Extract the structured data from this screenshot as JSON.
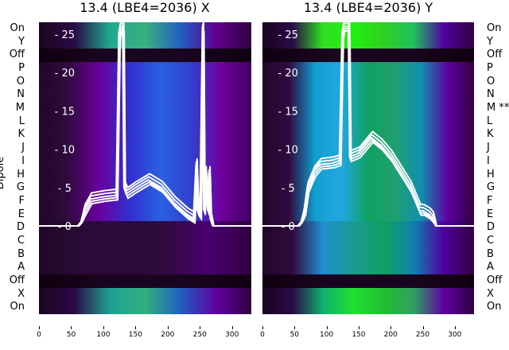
{
  "chart_data": [
    {
      "type": "heatmap",
      "title": "13.4 (LBE4=2036) X",
      "ylabel": "Dipole",
      "xlim": [
        0,
        330
      ],
      "ylim_line": [
        -1.5,
        26.5
      ],
      "xticks": [
        0,
        50,
        100,
        150,
        200,
        250,
        300
      ],
      "yticks": [
        0,
        5,
        10,
        15,
        20,
        25
      ],
      "row_labels": [
        "On",
        "Y",
        "Off",
        "P",
        "O",
        "N",
        "M",
        "L",
        "K",
        "J",
        "I",
        "H",
        "G",
        "F",
        "E",
        "D",
        "C",
        "B",
        "A",
        "Off",
        "X",
        "On"
      ],
      "band_colors": {
        "top": [
          "#1a0520",
          "#2a0a45",
          "#20a890",
          "#3ab080",
          "#2060c0",
          "#600090",
          "#300040"
        ],
        "off": [
          "#100010",
          "#1a0520",
          "#1a0520",
          "#100010"
        ],
        "main": [
          "#200828",
          "#300a40",
          "#6a00a0",
          "#3030d0",
          "#2a60e0",
          "#3040d0",
          "#7000a0",
          "#400060"
        ],
        "lower": [
          "#200828",
          "#2a0a38",
          "#2a0a38",
          "#300a40",
          "#4a0070",
          "#300040"
        ],
        "bottom": [
          "#1a0520",
          "#2a0a45",
          "#20a090",
          "#30b080",
          "#2060c0",
          "#6000a0",
          "#300040"
        ]
      },
      "line": {
        "x": [
          0,
          60,
          65,
          70,
          80,
          100,
          120,
          124,
          126,
          130,
          132,
          136,
          150,
          170,
          190,
          210,
          230,
          240,
          244,
          246,
          250,
          254,
          256,
          258,
          262,
          264,
          266,
          270,
          280,
          330
        ],
        "y": [
          0,
          0,
          0.5,
          2,
          3.5,
          3.8,
          4,
          25,
          26,
          26,
          5,
          4.2,
          5,
          6,
          5,
          3,
          1.5,
          1,
          8,
          2,
          1.5,
          26,
          2,
          7,
          2,
          7,
          1,
          0,
          0,
          0
        ]
      },
      "series_color": "#ffffff"
    },
    {
      "type": "heatmap",
      "title": "13.4 (LBE4=2036) Y",
      "xlim": [
        0,
        330
      ],
      "ylim_line": [
        -1.5,
        26.5
      ],
      "xticks": [
        0,
        50,
        100,
        150,
        200,
        250,
        300
      ],
      "yticks": [
        0,
        5,
        10,
        15,
        20,
        25
      ],
      "row_labels": [
        "On",
        "Y",
        "Off",
        "P",
        "O",
        "N",
        "M **",
        "L",
        "K",
        "J",
        "I",
        "H",
        "G",
        "F",
        "E",
        "D",
        "C",
        "B",
        "A",
        "Off",
        "X",
        "On"
      ],
      "band_colors": {
        "top": [
          "#1a0520",
          "#2a0a45",
          "#30e020",
          "#20f010",
          "#30d020",
          "#20c060",
          "#5000a0",
          "#300040"
        ],
        "off": [
          "#100010",
          "#1a0520",
          "#1a0520",
          "#100010"
        ],
        "main": [
          "#200828",
          "#300a40",
          "#10a0d0",
          "#20a8e0",
          "#10a060",
          "#20a070",
          "#1090b0",
          "#6000a0",
          "#300040"
        ],
        "lower": [
          "#200828",
          "#300a40",
          "#2090d0",
          "#1a9a90",
          "#10a060",
          "#1080b0",
          "#5000a0",
          "#300040"
        ],
        "bottom": [
          "#1a0520",
          "#2a0a45",
          "#10b070",
          "#20e030",
          "#20c030",
          "#30a060",
          "#6000a0",
          "#300040"
        ]
      },
      "line": {
        "x": [
          0,
          55,
          60,
          65,
          70,
          80,
          90,
          110,
          120,
          124,
          126,
          130,
          134,
          136,
          150,
          170,
          185,
          200,
          215,
          230,
          240,
          245,
          250,
          260,
          265,
          270,
          280,
          330
        ],
        "y": [
          0,
          0,
          0.5,
          2,
          5,
          7,
          8,
          8.2,
          8.5,
          25,
          26,
          26,
          26,
          9,
          9.5,
          11.5,
          10.5,
          9,
          7,
          5,
          3,
          2,
          2,
          1.5,
          1,
          0,
          0,
          0
        ]
      },
      "series_color": "#ffffff"
    }
  ]
}
